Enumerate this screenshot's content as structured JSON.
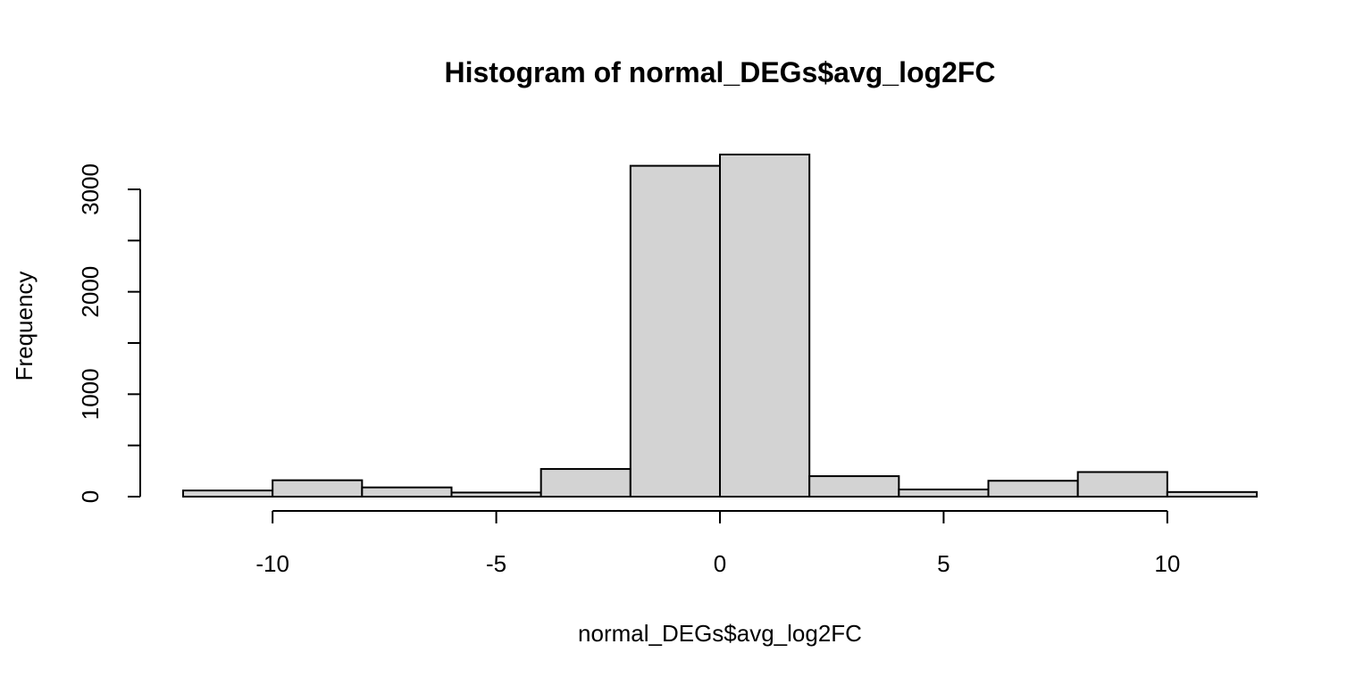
{
  "chart_data": {
    "type": "bar",
    "title": "Histogram of normal_DEGs$avg_log2FC",
    "xlabel": "normal_DEGs$avg_log2FC",
    "ylabel": "Frequency",
    "bins": [
      {
        "from": -12,
        "to": -10,
        "value": 60
      },
      {
        "from": -10,
        "to": -8,
        "value": 160
      },
      {
        "from": -8,
        "to": -6,
        "value": 90
      },
      {
        "from": -6,
        "to": -4,
        "value": 40
      },
      {
        "from": -4,
        "to": -2,
        "value": 270
      },
      {
        "from": -2,
        "to": 0,
        "value": 3230
      },
      {
        "from": 0,
        "to": 2,
        "value": 3340
      },
      {
        "from": 2,
        "to": 4,
        "value": 200
      },
      {
        "from": 4,
        "to": 6,
        "value": 70
      },
      {
        "from": 6,
        "to": 8,
        "value": 155
      },
      {
        "from": 8,
        "to": 10,
        "value": 240
      },
      {
        "from": 10,
        "to": 12,
        "value": 45
      }
    ],
    "xlim": [
      -12,
      12
    ],
    "ylim": [
      0,
      3340
    ],
    "x_ticks": [
      -10,
      -5,
      0,
      5,
      10
    ],
    "x_tick_labels": [
      "-10",
      "-5",
      "0",
      "5",
      "10"
    ],
    "y_ticks": [
      0,
      500,
      1000,
      1500,
      2000,
      2500,
      3000
    ],
    "y_tick_labels": [
      "0",
      "",
      "1000",
      "",
      "2000",
      "",
      "3000"
    ],
    "bar_color": "#d3d3d3",
    "grid": false
  }
}
